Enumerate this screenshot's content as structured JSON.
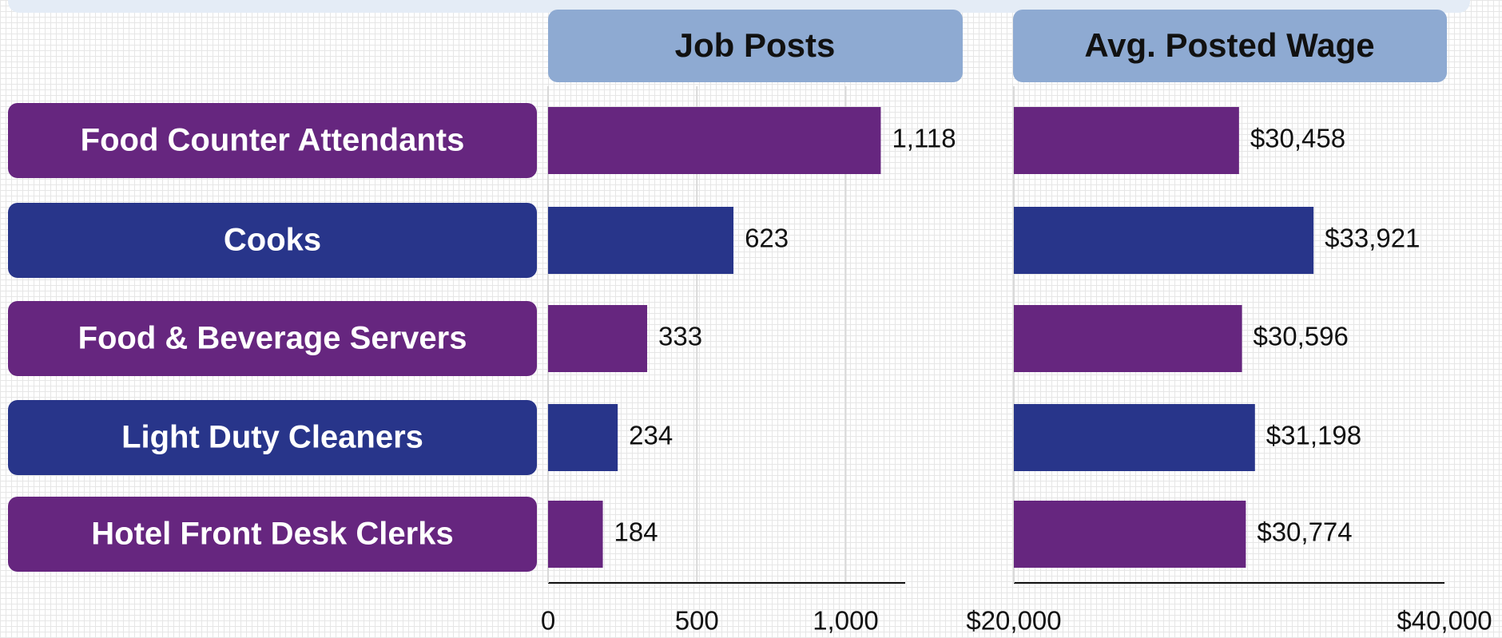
{
  "chart_data": [
    {
      "type": "barh",
      "title": "Job Posts",
      "categories": [
        "Food Counter Attendants",
        "Cooks",
        "Food & Beverage Servers",
        "Light Duty Cleaners",
        "Hotel Front Desk Clerks"
      ],
      "values": [
        1118,
        623,
        333,
        234,
        184
      ],
      "value_labels": [
        "1,118",
        "623",
        "333",
        "234",
        "184"
      ],
      "colors": [
        "#66267f",
        "#28358a",
        "#66267f",
        "#28358a",
        "#66267f"
      ],
      "xlim": [
        0,
        1200
      ],
      "xticks": [
        0,
        500,
        {
          "value": 1000,
          "label": "1,000"
        }
      ],
      "grid": true
    },
    {
      "type": "barh",
      "title": "Avg. Posted Wage",
      "values": [
        30458,
        33921,
        30596,
        31198,
        30774
      ],
      "value_labels": [
        "$30,458",
        "$33,921",
        "$30,596",
        "$31,198",
        "$30,774"
      ],
      "colors": [
        "#66267f",
        "#28358a",
        "#66267f",
        "#28358a",
        "#66267f"
      ],
      "xlim": [
        20000,
        40000
      ],
      "xticks": [
        {
          "value": 20000,
          "label": "$20,000"
        },
        {
          "value": 40000,
          "label": "$40,000"
        }
      ],
      "grid": false
    }
  ]
}
